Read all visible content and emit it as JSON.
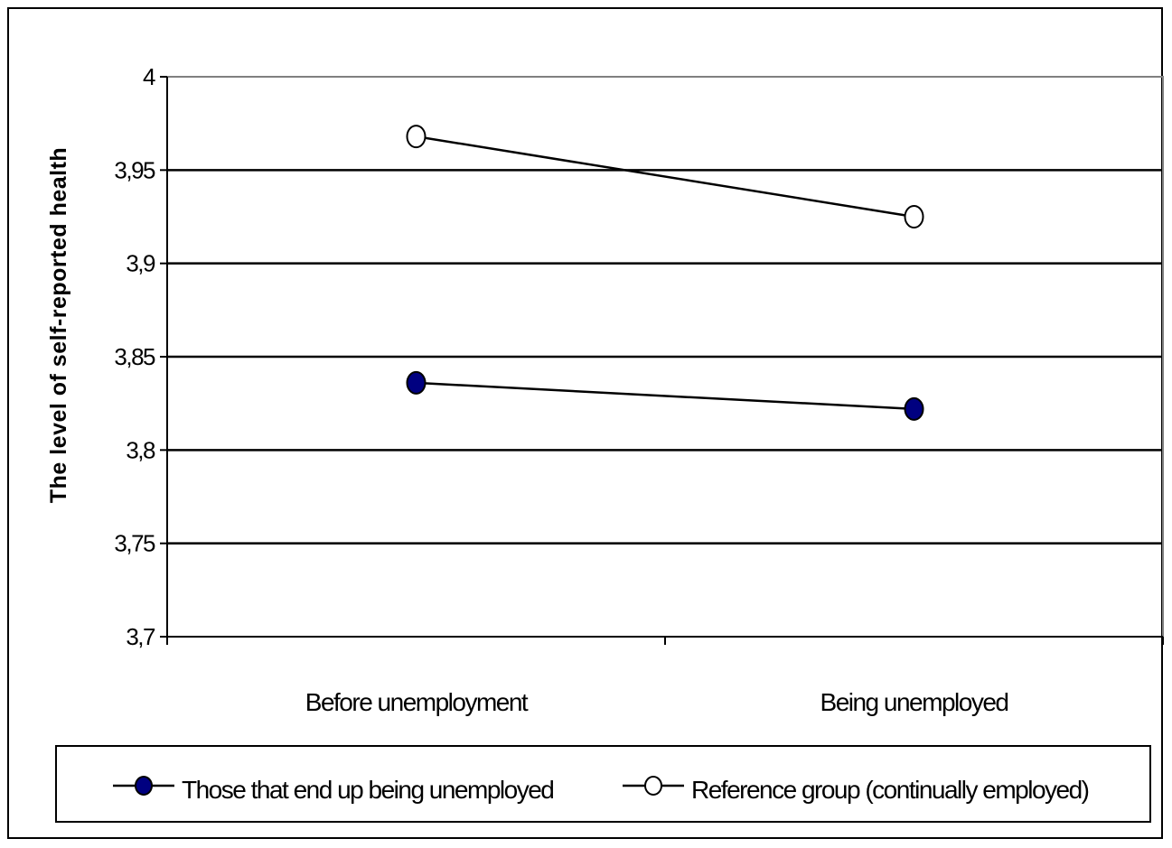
{
  "chart_data": {
    "type": "line",
    "categories": [
      "Before unemployment",
      "Being unemployed"
    ],
    "ylabel": "The level of self-reported health",
    "xlabel": "",
    "ylim": [
      3.7,
      4.0
    ],
    "yticks": [
      3.7,
      3.75,
      3.8,
      3.85,
      3.9,
      3.95,
      4.0
    ],
    "ytick_labels": [
      "3,7",
      "3,75",
      "3,8",
      "3,85",
      "3,9",
      "3,95",
      "4"
    ],
    "grid": true,
    "legend_position": "bottom",
    "series": [
      {
        "name": "Those that end up being unemployed",
        "values": [
          3.836,
          3.822
        ],
        "marker": "filled-circle",
        "marker_color": "#000080"
      },
      {
        "name": "Reference group (continually employed)",
        "values": [
          3.968,
          3.925
        ],
        "marker": "open-circle",
        "marker_color": "#ffffff"
      }
    ]
  }
}
